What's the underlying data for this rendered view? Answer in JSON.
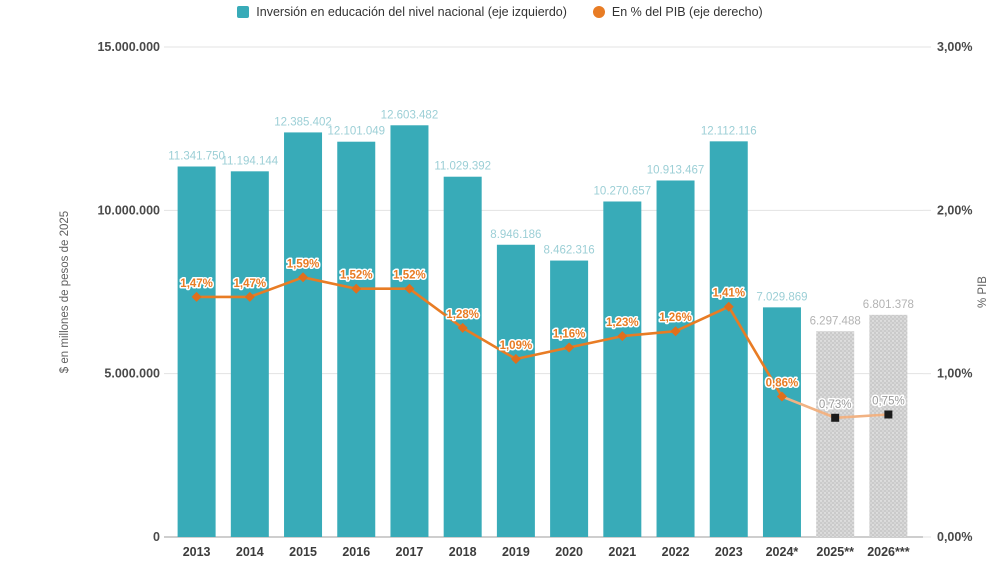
{
  "legend": {
    "items": [
      {
        "label": "Inversión en educación del nivel nacional (eje izquierdo)",
        "swatch": "square"
      },
      {
        "label": "En % del PIB (eje derecho)",
        "swatch": "circle"
      }
    ]
  },
  "chart_data": {
    "type": "bar+line",
    "title": "",
    "categories": [
      "2013",
      "2014",
      "2015",
      "2016",
      "2017",
      "2018",
      "2019",
      "2020",
      "2021",
      "2022",
      "2023",
      "2024*",
      "2025**",
      "2026***"
    ],
    "series": [
      {
        "name": "Inversión en educación del nivel nacional (eje izquierdo)",
        "type": "bar",
        "axis": "left",
        "values": [
          11341750,
          11194144,
          12385402,
          12101049,
          12603482,
          11029392,
          8946186,
          8462316,
          10270657,
          10913467,
          12112116,
          7029869,
          6297488,
          6801378
        ],
        "value_labels": [
          "11.341.750",
          "11.194.144",
          "12.385.402",
          "12.101.049",
          "12.603.482",
          "11.029.392",
          "8.946.186",
          "8.462.316",
          "10.270.657",
          "10.913.467",
          "12.112.116",
          "7.029.869",
          "6.297.488",
          "6.801.378"
        ],
        "projected_from_index": 12
      },
      {
        "name": "En % del PIB (eje derecho)",
        "type": "line",
        "axis": "right",
        "values": [
          1.47,
          1.47,
          1.59,
          1.52,
          1.52,
          1.28,
          1.09,
          1.16,
          1.23,
          1.26,
          1.41,
          0.86,
          0.73,
          0.75
        ],
        "value_labels": [
          "1,47%",
          "1,47%",
          "1,59%",
          "1,52%",
          "1,52%",
          "1,28%",
          "1,09%",
          "1,16%",
          "1,23%",
          "1,26%",
          "1,41%",
          "0,86%",
          "0,73%",
          "0,75%"
        ],
        "projected_from_index": 12
      }
    ],
    "left_axis": {
      "title": "$ en millones de pesos de 2025",
      "range": [
        0,
        15000000
      ],
      "ticks": [
        {
          "label": "15.000.000",
          "value": 15000000
        },
        {
          "label": "10.000.000",
          "value": 10000000
        },
        {
          "label": "5.000.000",
          "value": 5000000
        },
        {
          "label": "0",
          "value": 0
        }
      ]
    },
    "right_axis": {
      "title": "% PIB",
      "range": [
        0,
        3
      ],
      "ticks": [
        {
          "label": "3,00%",
          "value": 3
        },
        {
          "label": "2,00%",
          "value": 2
        },
        {
          "label": "1,00%",
          "value": 1
        },
        {
          "label": "0,00%",
          "value": 0
        }
      ]
    },
    "grid": true,
    "legend_position": "top",
    "colors": {
      "bar": "#38abb8",
      "bar_label": "#9ccfd6",
      "bar_projected": "#cacaca",
      "bar_projected_label": "#b3b3b3",
      "line": "#e87c24",
      "line_projected": "#f1b283",
      "marker": "#e06f1c",
      "projected_marker": "#1b1b1b",
      "line_label": "#e87c24",
      "line_projected_label": "#9a9a9a",
      "grid": "#e3e3e3",
      "axis_line": "#b0b0b0",
      "tick_text": "#4a4a4a",
      "axis_title": "#5f5f5f"
    }
  }
}
